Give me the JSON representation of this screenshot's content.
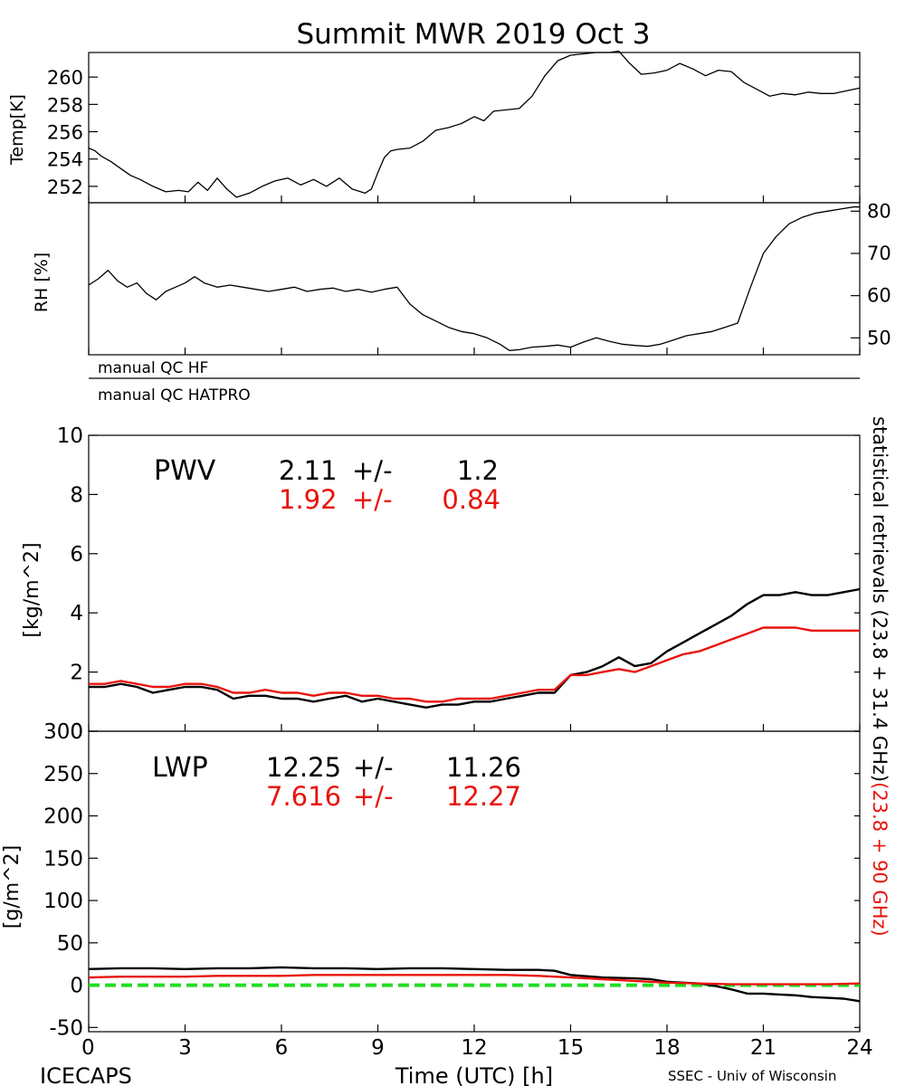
{
  "title": "Summit MWR 2019 Oct  3",
  "footer": {
    "left": "ICECAPS",
    "center": "Time (UTC) [h]",
    "right": "SSEC - Univ of Wisconsin"
  },
  "side_label": {
    "black": "statistical retrievals (23.8 + 31.4 GHz)",
    "red": "(23.8 + 90 GHz)"
  },
  "colors": {
    "black": "#000000",
    "red": "#e8140c",
    "zero_line": "#22dd22"
  },
  "qc": {
    "hf": "manual QC HF",
    "hatpro": "manual QC HATPRO"
  },
  "pwv_stats": {
    "label": "PWV",
    "black": {
      "mean": "2.11",
      "pm": "+/-",
      "sd": "1.2"
    },
    "red": {
      "mean": "1.92",
      "pm": "+/-",
      "sd": "0.84"
    }
  },
  "lwp_stats": {
    "label": "LWP",
    "black": {
      "mean": "12.25",
      "pm": "+/-",
      "sd": "11.26"
    },
    "red": {
      "mean": "7.616",
      "pm": "+/-",
      "sd": "12.27"
    }
  },
  "chart_data": [
    {
      "id": "temp",
      "type": "line",
      "ylabel": "Temp[K]",
      "xlim": [
        0,
        24
      ],
      "ylim": [
        250.8,
        261.8
      ],
      "yticks": [
        252,
        254,
        256,
        258,
        260
      ],
      "tick_side": "left",
      "series": [
        {
          "color": "#000000",
          "x": [
            0,
            0.2,
            0.4,
            0.7,
            1.0,
            1.3,
            1.6,
            2.0,
            2.4,
            2.8,
            3.1,
            3.4,
            3.7,
            4.0,
            4.3,
            4.6,
            5.0,
            5.4,
            5.8,
            6.2,
            6.6,
            7.0,
            7.4,
            7.8,
            8.2,
            8.6,
            8.8,
            9.0,
            9.2,
            9.4,
            9.6,
            10.0,
            10.4,
            10.8,
            11.2,
            11.6,
            12.0,
            12.3,
            12.6,
            13.0,
            13.4,
            13.8,
            14.2,
            14.6,
            15.0,
            15.4,
            15.8,
            16.2,
            16.5,
            16.8,
            17.2,
            17.6,
            18.0,
            18.4,
            18.8,
            19.2,
            19.6,
            20.0,
            20.4,
            20.8,
            21.2,
            21.6,
            22.0,
            22.4,
            22.8,
            23.2,
            23.6,
            24.0
          ],
          "y": [
            254.8,
            254.6,
            254.2,
            253.8,
            253.3,
            252.8,
            252.5,
            252.0,
            251.6,
            251.7,
            251.6,
            252.3,
            251.7,
            252.6,
            251.8,
            251.2,
            251.5,
            252.0,
            252.4,
            252.6,
            252.1,
            252.5,
            252.0,
            252.6,
            251.8,
            251.5,
            251.8,
            253.0,
            254.1,
            254.6,
            254.7,
            254.8,
            255.3,
            256.1,
            256.3,
            256.6,
            257.1,
            256.8,
            257.5,
            257.6,
            257.7,
            258.6,
            260.1,
            261.2,
            261.6,
            261.7,
            261.8,
            261.8,
            261.9,
            261.1,
            260.2,
            260.3,
            260.5,
            261.0,
            260.6,
            260.1,
            260.5,
            260.4,
            259.6,
            259.1,
            258.6,
            258.8,
            258.7,
            258.9,
            258.8,
            258.8,
            259.0,
            259.2
          ]
        }
      ]
    },
    {
      "id": "rh",
      "type": "line",
      "ylabel": "RH [%]",
      "xlim": [
        0,
        24
      ],
      "ylim": [
        46,
        82
      ],
      "yticks": [
        50,
        60,
        70,
        80
      ],
      "tick_side": "right",
      "series": [
        {
          "color": "#000000",
          "x": [
            0,
            0.3,
            0.6,
            0.9,
            1.2,
            1.5,
            1.8,
            2.1,
            2.4,
            2.7,
            3.0,
            3.3,
            3.6,
            4.0,
            4.4,
            4.8,
            5.2,
            5.6,
            6.0,
            6.4,
            6.8,
            7.2,
            7.6,
            8.0,
            8.4,
            8.8,
            9.2,
            9.6,
            10.0,
            10.4,
            10.8,
            11.2,
            11.6,
            12.0,
            12.4,
            12.8,
            13.1,
            13.4,
            13.8,
            14.2,
            14.6,
            15.0,
            15.4,
            15.8,
            16.2,
            16.6,
            17.0,
            17.4,
            17.8,
            18.2,
            18.6,
            19.0,
            19.4,
            19.8,
            20.2,
            20.6,
            21.0,
            21.4,
            21.8,
            22.2,
            22.6,
            23.0,
            23.4,
            23.8,
            24.0
          ],
          "y": [
            62.5,
            64.0,
            66.0,
            63.5,
            62.0,
            63.0,
            60.5,
            59.0,
            61.0,
            62.0,
            63.0,
            64.5,
            63.0,
            62.0,
            62.5,
            62.0,
            61.5,
            61.0,
            61.5,
            62.0,
            61.0,
            61.5,
            61.8,
            61.0,
            61.5,
            60.8,
            61.5,
            62.0,
            58.0,
            55.5,
            54.0,
            52.5,
            51.5,
            51.0,
            50.0,
            48.5,
            47.0,
            47.2,
            47.8,
            48.0,
            48.3,
            47.8,
            49.0,
            50.0,
            49.2,
            48.5,
            48.2,
            48.0,
            48.5,
            49.5,
            50.5,
            51.0,
            51.5,
            52.5,
            53.5,
            62.0,
            70.0,
            74.0,
            77.0,
            78.5,
            79.5,
            80.0,
            80.5,
            81.0,
            81.0
          ]
        }
      ]
    },
    {
      "id": "pwv",
      "type": "line",
      "ylabel": "[kg/m^2]",
      "xlim": [
        0,
        24
      ],
      "ylim": [
        0,
        10
      ],
      "yticks": [
        0,
        2,
        4,
        6,
        8,
        10
      ],
      "tick_side": "left",
      "series": [
        {
          "color": "#000000",
          "x": [
            0,
            0.5,
            1.0,
            1.5,
            2.0,
            2.5,
            3.0,
            3.5,
            4.0,
            4.5,
            5.0,
            5.5,
            6.0,
            6.5,
            7.0,
            7.5,
            8.0,
            8.5,
            9.0,
            9.5,
            10.0,
            10.5,
            11.0,
            11.5,
            12.0,
            12.5,
            13.0,
            13.5,
            14.0,
            14.5,
            15.0,
            15.5,
            16.0,
            16.5,
            17.0,
            17.5,
            18.0,
            18.5,
            19.0,
            19.5,
            20.0,
            20.5,
            21.0,
            21.5,
            22.0,
            22.5,
            23.0,
            23.5,
            24.0
          ],
          "y": [
            1.5,
            1.5,
            1.6,
            1.5,
            1.3,
            1.4,
            1.5,
            1.5,
            1.4,
            1.1,
            1.2,
            1.2,
            1.1,
            1.1,
            1.0,
            1.1,
            1.2,
            1.0,
            1.1,
            1.0,
            0.9,
            0.8,
            0.9,
            0.9,
            1.0,
            1.0,
            1.1,
            1.2,
            1.3,
            1.3,
            1.9,
            2.0,
            2.2,
            2.5,
            2.2,
            2.3,
            2.7,
            3.0,
            3.3,
            3.6,
            3.9,
            4.3,
            4.6,
            4.6,
            4.7,
            4.6,
            4.6,
            4.7,
            4.8
          ]
        },
        {
          "color": "#e8140c",
          "x": [
            0,
            0.5,
            1.0,
            1.5,
            2.0,
            2.5,
            3.0,
            3.5,
            4.0,
            4.5,
            5.0,
            5.5,
            6.0,
            6.5,
            7.0,
            7.5,
            8.0,
            8.5,
            9.0,
            9.5,
            10.0,
            10.5,
            11.0,
            11.5,
            12.0,
            12.5,
            13.0,
            13.5,
            14.0,
            14.5,
            15.0,
            15.5,
            16.0,
            16.5,
            17.0,
            17.5,
            18.0,
            18.5,
            19.0,
            19.5,
            20.0,
            20.5,
            21.0,
            21.5,
            22.0,
            22.5,
            23.0,
            23.5,
            24.0
          ],
          "y": [
            1.6,
            1.6,
            1.7,
            1.6,
            1.5,
            1.5,
            1.6,
            1.6,
            1.5,
            1.3,
            1.3,
            1.4,
            1.3,
            1.3,
            1.2,
            1.3,
            1.3,
            1.2,
            1.2,
            1.1,
            1.1,
            1.0,
            1.0,
            1.1,
            1.1,
            1.1,
            1.2,
            1.3,
            1.4,
            1.4,
            1.9,
            1.9,
            2.0,
            2.1,
            2.0,
            2.2,
            2.4,
            2.6,
            2.7,
            2.9,
            3.1,
            3.3,
            3.5,
            3.5,
            3.5,
            3.4,
            3.4,
            3.4,
            3.4
          ]
        }
      ]
    },
    {
      "id": "lwp",
      "type": "line",
      "ylabel": "[g/m^2]",
      "xlabel": "Time (UTC) [h]",
      "xlim": [
        0,
        24
      ],
      "ylim": [
        -55,
        300
      ],
      "xticks": [
        0,
        3,
        6,
        9,
        12,
        15,
        18,
        21,
        24
      ],
      "yticks": [
        -50,
        0,
        50,
        100,
        150,
        200,
        250,
        300
      ],
      "tick_side": "left",
      "zero_line": 0,
      "series": [
        {
          "color": "#000000",
          "x": [
            0,
            1,
            2,
            3,
            4,
            5,
            6,
            7,
            8,
            9,
            10,
            11,
            12,
            13,
            14,
            14.5,
            15,
            16,
            17,
            17.5,
            18,
            18.5,
            19,
            19.5,
            20,
            20.5,
            21,
            21.5,
            22,
            22.5,
            23,
            23.5,
            24
          ],
          "y": [
            19,
            20,
            20,
            19,
            20,
            20,
            21,
            20,
            20,
            19,
            20,
            20,
            19,
            18,
            18,
            17,
            12,
            9,
            8,
            7,
            4,
            3,
            2,
            -1,
            -5,
            -10,
            -10,
            -11,
            -12,
            -14,
            -15,
            -16,
            -19
          ]
        },
        {
          "color": "#e8140c",
          "x": [
            0,
            1,
            2,
            3,
            4,
            5,
            6,
            7,
            8,
            9,
            10,
            11,
            12,
            13,
            14,
            15,
            16,
            17,
            18,
            19,
            20,
            21,
            22,
            23,
            24
          ],
          "y": [
            9,
            10,
            10,
            10,
            11,
            11,
            11,
            12,
            12,
            12,
            12,
            12,
            12,
            12,
            11,
            9,
            7,
            5,
            3,
            2,
            1,
            1,
            1,
            1,
            2
          ]
        }
      ]
    }
  ]
}
